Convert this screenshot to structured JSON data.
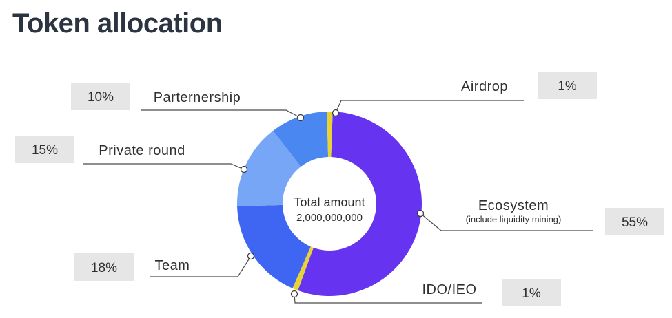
{
  "title": "Token allocation",
  "chart_data": {
    "type": "pie",
    "variant": "donut",
    "center_label": "Total amount",
    "center_value": "2,000,000,000",
    "slices": [
      {
        "label": "Ecosystem",
        "sublabel": "(include liquidity mining)",
        "value": 55,
        "display": "55%",
        "color": "#6633f0"
      },
      {
        "label": "IDO/IEO",
        "value": 1,
        "display": "1%",
        "color": "#e8d335"
      },
      {
        "label": "Team",
        "value": 18,
        "display": "18%",
        "color": "#3e66f2"
      },
      {
        "label": "Private round",
        "value": 15,
        "display": "15%",
        "color": "#78a6f6"
      },
      {
        "label": "Parternership",
        "value": 10,
        "display": "10%",
        "color": "#4b87f0"
      },
      {
        "label": "Airdrop",
        "value": 1,
        "display": "1%",
        "color": "#e8d335"
      }
    ]
  }
}
